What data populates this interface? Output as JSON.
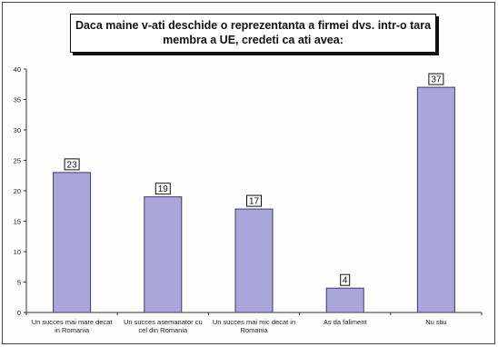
{
  "chart_data": {
    "type": "bar",
    "title_lines": [
      "Daca maine v-ati deschide o reprezentanta a firmei dvs. intr-o tara",
      "membra a UE, credeti ca ati avea:"
    ],
    "categories": [
      [
        "Un succes mai mare decat",
        "in Romania"
      ],
      [
        "Un succes asemanator cu",
        "cel din Romania"
      ],
      [
        "Un succes mai mic decat in",
        "Romania"
      ],
      [
        "As da faliment"
      ],
      [
        "Nu stiu"
      ]
    ],
    "values": [
      23,
      19,
      17,
      4,
      37
    ],
    "ylim": [
      0,
      40
    ],
    "yticks": [
      0,
      5,
      10,
      15,
      20,
      25,
      30,
      35,
      40
    ],
    "grid": false,
    "legend": "none",
    "colors": {
      "bar_fill": "#a9a6d9",
      "bar_stroke": "#3c3a6e",
      "axis": "#333333"
    }
  }
}
